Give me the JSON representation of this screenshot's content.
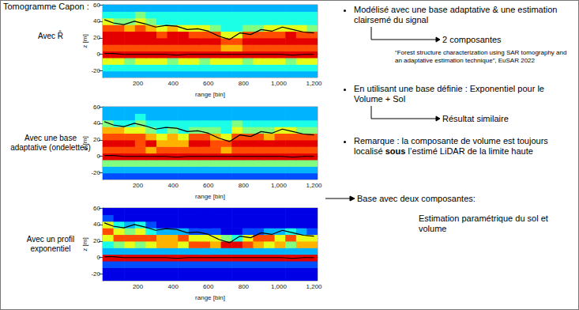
{
  "title": "Tomogramme Capon :",
  "chart_data": [
    {
      "type": "heatmap",
      "panel_label": "Avec R̂",
      "x_label": "range [bin]",
      "y_label": "z [m]",
      "xlim": [
        0,
        1220
      ],
      "xticks": [
        200,
        400,
        600,
        800,
        1000,
        1200
      ],
      "ylim": [
        -28,
        60
      ],
      "yticks": [
        -20,
        0,
        20,
        40,
        60
      ],
      "x_edges": [
        0,
        61,
        122,
        183,
        244,
        305,
        366,
        427,
        488,
        549,
        610,
        671,
        732,
        793,
        854,
        915,
        976,
        1037,
        1098,
        1159,
        1220
      ],
      "z_edges": [
        -28,
        -20,
        -12,
        -4,
        4,
        12,
        20,
        28,
        36,
        44,
        52,
        60
      ],
      "color_range": [
        0,
        10
      ],
      "cells": [
        [
          3,
          3,
          3,
          3,
          3,
          3,
          3,
          3,
          3,
          3,
          3,
          3,
          3,
          3,
          3,
          3,
          3,
          3,
          3,
          3
        ],
        [
          4,
          4,
          4,
          4,
          4,
          4,
          4,
          4,
          4,
          4,
          4,
          4,
          4,
          4,
          4,
          4,
          4,
          4,
          4,
          4
        ],
        [
          6,
          6,
          5,
          6,
          6,
          6,
          5,
          6,
          6,
          5,
          6,
          6,
          6,
          5,
          6,
          6,
          6,
          5,
          6,
          6
        ],
        [
          9,
          9,
          9,
          9,
          9,
          9,
          9,
          9,
          9,
          9,
          9,
          9,
          9,
          9,
          9,
          9,
          9,
          9,
          9,
          9
        ],
        [
          8,
          8,
          8,
          8,
          8,
          8,
          8,
          8,
          8,
          8,
          8,
          7,
          7,
          8,
          8,
          8,
          8,
          8,
          8,
          8
        ],
        [
          9,
          9,
          9,
          9,
          9,
          9,
          9,
          9,
          9,
          9,
          9,
          8,
          8,
          9,
          9,
          9,
          9,
          9,
          9,
          9
        ],
        [
          9,
          9,
          9,
          9,
          9,
          8,
          9,
          9,
          8,
          8,
          8,
          6,
          6,
          8,
          8,
          8,
          8,
          9,
          8,
          8
        ],
        [
          8,
          8,
          7,
          8,
          7,
          6,
          7,
          6,
          6,
          6,
          5,
          4,
          4,
          5,
          5,
          6,
          6,
          6,
          6,
          5
        ],
        [
          6,
          5,
          5,
          6,
          5,
          4,
          4,
          4,
          4,
          4,
          4,
          4,
          4,
          4,
          4,
          4,
          4,
          4,
          4,
          4
        ],
        [
          4,
          4,
          4,
          5,
          4,
          4,
          4,
          4,
          4,
          4,
          4,
          4,
          4,
          4,
          4,
          4,
          4,
          4,
          4,
          4
        ],
        [
          3,
          3,
          3,
          3,
          3,
          3,
          3,
          3,
          3,
          3,
          3,
          3,
          3,
          3,
          3,
          3,
          3,
          3,
          3,
          3
        ]
      ],
      "lines": [
        {
          "color": "#000000",
          "x": [
            10,
            60,
            120,
            180,
            240,
            300,
            360,
            420,
            480,
            540,
            600,
            660,
            720,
            780,
            840,
            900,
            960,
            1020,
            1080,
            1140,
            1200
          ],
          "values": [
            42,
            38,
            36,
            40,
            37,
            33,
            35,
            34,
            30,
            31,
            28,
            22,
            18,
            26,
            24,
            30,
            28,
            33,
            30,
            27,
            26
          ]
        },
        {
          "color": "#000000",
          "x": [
            10,
            60,
            120,
            180,
            240,
            300,
            360,
            420,
            480,
            540,
            600,
            660,
            720,
            780,
            840,
            900,
            960,
            1020,
            1080,
            1140,
            1200
          ],
          "values": [
            1,
            1,
            0,
            0,
            0,
            0,
            0,
            -1,
            0,
            0,
            0,
            0,
            0,
            0,
            0,
            0,
            0,
            0,
            -1,
            0,
            0
          ]
        }
      ]
    },
    {
      "type": "heatmap",
      "panel_label": "Avec une base adaptative (ondelettes)",
      "x_label": "range [bin]",
      "y_label": "z [m]",
      "xlim": [
        0,
        1220
      ],
      "xticks": [
        200,
        400,
        600,
        800,
        1000,
        1200
      ],
      "ylim": [
        -28,
        60
      ],
      "yticks": [
        -20,
        0,
        20,
        40,
        60
      ],
      "x_edges": [
        0,
        61,
        122,
        183,
        244,
        305,
        366,
        427,
        488,
        549,
        610,
        671,
        732,
        793,
        854,
        915,
        976,
        1037,
        1098,
        1159,
        1220
      ],
      "z_edges": [
        -28,
        -20,
        -12,
        -4,
        4,
        12,
        20,
        28,
        36,
        44,
        52,
        60
      ],
      "color_range": [
        0,
        10
      ],
      "cells": [
        [
          2,
          2,
          2,
          2,
          2,
          2,
          2,
          2,
          2,
          2,
          2,
          2,
          2,
          2,
          2,
          2,
          2,
          2,
          2,
          2
        ],
        [
          3,
          3,
          3,
          3,
          3,
          3,
          3,
          3,
          3,
          3,
          3,
          3,
          3,
          3,
          3,
          3,
          3,
          3,
          3,
          3
        ],
        [
          5,
          5,
          5,
          5,
          5,
          5,
          5,
          5,
          5,
          5,
          5,
          5,
          5,
          5,
          5,
          5,
          5,
          5,
          5,
          5
        ],
        [
          9,
          9,
          9,
          9,
          9,
          9,
          9,
          9,
          9,
          9,
          9,
          9,
          9,
          9,
          9,
          9,
          9,
          9,
          9,
          9
        ],
        [
          8,
          8,
          8,
          8,
          7,
          8,
          8,
          8,
          8,
          8,
          8,
          7,
          8,
          8,
          8,
          8,
          8,
          8,
          8,
          8
        ],
        [
          9,
          9,
          9,
          8,
          9,
          7,
          7,
          7,
          9,
          9,
          8,
          8,
          9,
          9,
          9,
          9,
          9,
          9,
          9,
          9
        ],
        [
          8,
          8,
          8,
          8,
          7,
          6,
          7,
          6,
          8,
          8,
          7,
          6,
          8,
          8,
          8,
          7,
          8,
          8,
          8,
          8
        ],
        [
          7,
          7,
          6,
          6,
          5,
          4,
          5,
          4,
          5,
          5,
          5,
          4,
          6,
          5,
          5,
          5,
          6,
          6,
          5,
          5
        ],
        [
          5,
          4,
          4,
          5,
          4,
          4,
          4,
          4,
          4,
          4,
          4,
          4,
          5,
          4,
          4,
          4,
          4,
          4,
          4,
          4
        ],
        [
          3,
          3,
          3,
          4,
          3,
          3,
          3,
          3,
          3,
          3,
          3,
          3,
          3,
          3,
          3,
          3,
          3,
          3,
          3,
          3
        ],
        [
          3,
          3,
          3,
          3,
          3,
          3,
          3,
          3,
          3,
          3,
          3,
          3,
          3,
          3,
          3,
          3,
          3,
          3,
          3,
          3
        ]
      ],
      "lines": [
        {
          "color": "#000000",
          "x": [
            10,
            60,
            120,
            180,
            240,
            300,
            360,
            420,
            480,
            540,
            600,
            660,
            720,
            780,
            840,
            900,
            960,
            1020,
            1080,
            1140,
            1200
          ],
          "values": [
            42,
            38,
            36,
            40,
            37,
            33,
            35,
            34,
            30,
            31,
            28,
            22,
            18,
            26,
            24,
            30,
            28,
            33,
            30,
            27,
            26
          ]
        },
        {
          "color": "#000000",
          "x": [
            10,
            60,
            120,
            180,
            240,
            300,
            360,
            420,
            480,
            540,
            600,
            660,
            720,
            780,
            840,
            900,
            960,
            1020,
            1080,
            1140,
            1200
          ],
          "values": [
            1,
            1,
            0,
            0,
            0,
            0,
            0,
            -1,
            0,
            0,
            0,
            0,
            0,
            0,
            0,
            0,
            0,
            0,
            -1,
            0,
            0
          ]
        }
      ]
    },
    {
      "type": "heatmap",
      "panel_label": "Avec un profil exponentiel",
      "x_label": "range [bin]",
      "y_label": "z [m]",
      "xlim": [
        0,
        1220
      ],
      "xticks": [
        200,
        400,
        600,
        800,
        1000,
        1200
      ],
      "ylim": [
        -28,
        60
      ],
      "yticks": [
        -20,
        0,
        20,
        40,
        60
      ],
      "x_edges": [
        0,
        61,
        122,
        183,
        244,
        305,
        366,
        427,
        488,
        549,
        610,
        671,
        732,
        793,
        854,
        915,
        976,
        1037,
        1098,
        1159,
        1220
      ],
      "z_edges": [
        -28,
        -20,
        -12,
        -4,
        4,
        12,
        20,
        28,
        36,
        44,
        52,
        60
      ],
      "color_range": [
        0,
        10
      ],
      "cells": [
        [
          1,
          1,
          1,
          1,
          1,
          1,
          1,
          1,
          1,
          1,
          1,
          1,
          1,
          1,
          1,
          1,
          1,
          1,
          1,
          1
        ],
        [
          1,
          1,
          1,
          1,
          1,
          1,
          1,
          1,
          1,
          1,
          1,
          1,
          1,
          1,
          1,
          1,
          1,
          1,
          1,
          1
        ],
        [
          2,
          2,
          2,
          2,
          2,
          2,
          2,
          2,
          2,
          2,
          2,
          2,
          2,
          2,
          2,
          2,
          2,
          2,
          2,
          2
        ],
        [
          9,
          9,
          9,
          9,
          9,
          9,
          9,
          9,
          9,
          9,
          9,
          9,
          9,
          9,
          9,
          9,
          9,
          9,
          9,
          9
        ],
        [
          3,
          3,
          3,
          3,
          3,
          3,
          3,
          3,
          3,
          3,
          3,
          3,
          3,
          3,
          3,
          3,
          3,
          3,
          3,
          3
        ],
        [
          4,
          5,
          6,
          5,
          6,
          7,
          7,
          6,
          8,
          8,
          7,
          9,
          9,
          8,
          7,
          6,
          7,
          5,
          7,
          7
        ],
        [
          6,
          8,
          8,
          8,
          8,
          7,
          7,
          8,
          6,
          6,
          6,
          5,
          4,
          6,
          8,
          8,
          6,
          8,
          6,
          6
        ],
        [
          8,
          6,
          5,
          6,
          4,
          3,
          3,
          3,
          2,
          2,
          2,
          1,
          1,
          2,
          2,
          3,
          3,
          4,
          3,
          2
        ],
        [
          6,
          4,
          3,
          4,
          2,
          1,
          1,
          1,
          1,
          1,
          1,
          1,
          1,
          1,
          1,
          1,
          1,
          1,
          1,
          1
        ],
        [
          2,
          1,
          1,
          1,
          1,
          1,
          1,
          1,
          1,
          1,
          1,
          1,
          1,
          1,
          1,
          1,
          1,
          1,
          1,
          1
        ],
        [
          1,
          1,
          1,
          1,
          1,
          1,
          1,
          1,
          1,
          1,
          1,
          1,
          1,
          1,
          1,
          1,
          1,
          1,
          1,
          1
        ]
      ],
      "lines": [
        {
          "color": "#000000",
          "x": [
            10,
            60,
            120,
            180,
            240,
            300,
            360,
            420,
            480,
            540,
            600,
            660,
            720,
            780,
            840,
            900,
            960,
            1020,
            1080,
            1140,
            1200
          ],
          "values": [
            42,
            38,
            36,
            40,
            37,
            33,
            35,
            34,
            30,
            31,
            28,
            22,
            18,
            26,
            24,
            30,
            28,
            33,
            30,
            27,
            26
          ]
        },
        {
          "color": "#000000",
          "x": [
            10,
            60,
            120,
            180,
            240,
            300,
            360,
            420,
            480,
            540,
            600,
            660,
            720,
            780,
            840,
            900,
            960,
            1020,
            1080,
            1140,
            1200
          ],
          "values": [
            1,
            1,
            0,
            0,
            0,
            0,
            0,
            -1,
            0,
            0,
            0,
            0,
            0,
            0,
            0,
            0,
            0,
            0,
            -1,
            0,
            0
          ]
        }
      ]
    }
  ],
  "notes": {
    "bullet1": "Modélisé avec une base adaptative & une estimation clairsemé du signal",
    "arrow1": "2 composantes",
    "citation": "“Forest structure characterization using SAR tomography and an adaptative estimation technique”, EuSAR 2022",
    "bullet2": "En utilisant une base définie : Exponentiel pour le Volume + Sol",
    "arrow2": "Résultat similaire",
    "bullet3": {
      "before": "Remarque : la composante de volume est toujours localisé ",
      "bold": "sous",
      "after": " l’estimé LiDAR de la limite haute"
    },
    "arrow3": "Base avec deux composantes:",
    "arrow3_detail": "Estimation paramétrique du sol et volume"
  }
}
